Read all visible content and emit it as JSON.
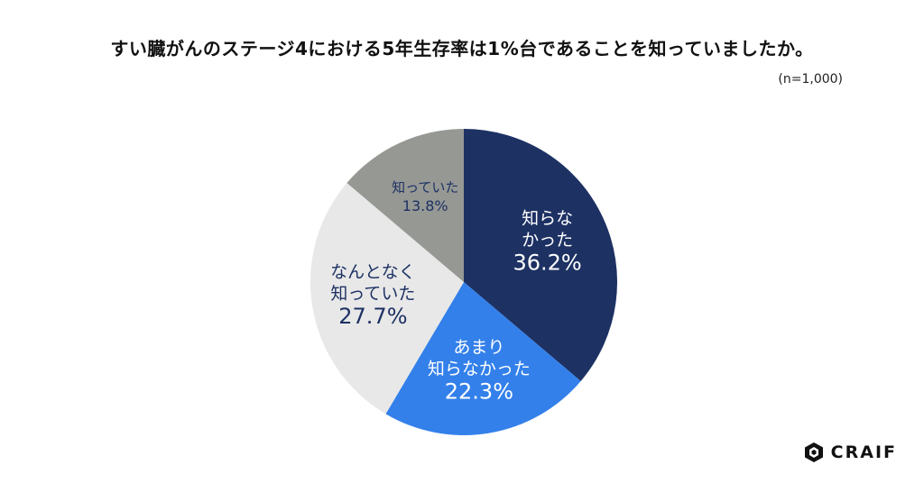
{
  "chart_data": {
    "type": "pie",
    "title": "すい臓がんのステージ4における5年生存率は1%台であることを知っていましたか。",
    "sample_size": "(n=1,000)",
    "start": "top",
    "direction": "clockwise",
    "slices": [
      {
        "label_lines": [
          "知らな",
          "かった"
        ],
        "value": 36.2,
        "value_label": "36.2%",
        "color": "#1d3163",
        "text_color": "#ffffff"
      },
      {
        "label_lines": [
          "あまり",
          "知らなかった"
        ],
        "value": 22.3,
        "value_label": "22.3%",
        "color": "#3380ea",
        "text_color": "#ffffff"
      },
      {
        "label_lines": [
          "なんとなく",
          "知っていた"
        ],
        "value": 27.7,
        "value_label": "27.7%",
        "color": "#e8e8e8",
        "text_color": "#1d3163"
      },
      {
        "label_lines": [
          "知っていた"
        ],
        "value": 13.8,
        "value_label": "13.8%",
        "color": "#969894",
        "text_color": "#1d3163"
      }
    ]
  },
  "brand": {
    "name": "CRAIF",
    "logo_icon": "craif-hexagon-icon"
  }
}
